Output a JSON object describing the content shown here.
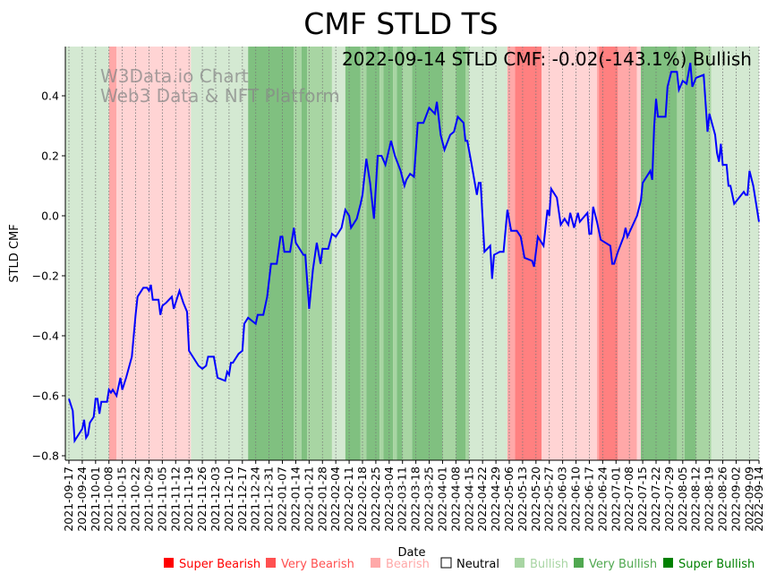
{
  "chart_data": {
    "type": "line",
    "title": "CMF STLD TS",
    "xlabel": "Date",
    "ylabel": "STLD CMF",
    "annotation": "2022-09-14 STLD CMF: -0.02(-143.1%) Bullish",
    "watermark": [
      "W3Data.io Chart",
      "Web3 Data & NFT Platform"
    ],
    "start_date": "2021-09-17",
    "xlim_days": [
      0,
      362
    ],
    "ylim": [
      -0.82,
      0.56
    ],
    "yticks": [
      -0.8,
      -0.6,
      -0.4,
      -0.2,
      0.0,
      0.2,
      0.4
    ],
    "ytick_labels": [
      "−0.8",
      "−0.6",
      "−0.4",
      "−0.2",
      "0.0",
      "0.2",
      "0.4"
    ],
    "xtick_labels": [
      "2021-09-17",
      "2021-09-24",
      "2021-10-01",
      "2021-10-08",
      "2021-10-15",
      "2021-10-22",
      "2021-10-29",
      "2021-11-05",
      "2021-11-12",
      "2021-11-19",
      "2021-11-26",
      "2021-12-03",
      "2021-12-10",
      "2021-12-17",
      "2021-12-24",
      "2021-12-31",
      "2022-01-07",
      "2022-01-14",
      "2022-01-21",
      "2022-01-28",
      "2022-02-04",
      "2022-02-11",
      "2022-02-18",
      "2022-02-25",
      "2022-03-04",
      "2022-03-11",
      "2022-03-18",
      "2022-03-25",
      "2022-04-01",
      "2022-04-08",
      "2022-04-15",
      "2022-04-22",
      "2022-04-29",
      "2022-05-06",
      "2022-05-13",
      "2022-05-20",
      "2022-05-27",
      "2022-06-03",
      "2022-06-10",
      "2022-06-17",
      "2022-06-24",
      "2022-07-01",
      "2022-07-08",
      "2022-07-15",
      "2022-07-22",
      "2022-07-29",
      "2022-08-05",
      "2022-08-12",
      "2022-08-19",
      "2022-08-26",
      "2022-09-02",
      "2022-09-09",
      "2022-09-14"
    ],
    "series": [
      {
        "name": "STLD CMF",
        "color": "#0000ff",
        "points_day_value": [
          [
            0,
            -0.61
          ],
          [
            2,
            -0.65
          ],
          [
            3,
            -0.75
          ],
          [
            7,
            -0.71
          ],
          [
            8,
            -0.68
          ],
          [
            9,
            -0.74
          ],
          [
            10,
            -0.73
          ],
          [
            11,
            -0.69
          ],
          [
            13,
            -0.67
          ],
          [
            14,
            -0.61
          ],
          [
            15,
            -0.61
          ],
          [
            16,
            -0.66
          ],
          [
            17,
            -0.62
          ],
          [
            20,
            -0.62
          ],
          [
            21,
            -0.58
          ],
          [
            22,
            -0.59
          ],
          [
            23,
            -0.58
          ],
          [
            25,
            -0.6
          ],
          [
            27,
            -0.54
          ],
          [
            28,
            -0.58
          ],
          [
            30,
            -0.54
          ],
          [
            33,
            -0.47
          ],
          [
            34,
            -0.4
          ],
          [
            35,
            -0.33
          ],
          [
            36,
            -0.27
          ],
          [
            39,
            -0.24
          ],
          [
            41,
            -0.24
          ],
          [
            42,
            -0.25
          ],
          [
            43,
            -0.23
          ],
          [
            44,
            -0.28
          ],
          [
            47,
            -0.28
          ],
          [
            48,
            -0.33
          ],
          [
            49,
            -0.3
          ],
          [
            51,
            -0.29
          ],
          [
            54,
            -0.27
          ],
          [
            55,
            -0.31
          ],
          [
            57,
            -0.27
          ],
          [
            58,
            -0.25
          ],
          [
            60,
            -0.29
          ],
          [
            62,
            -0.32
          ],
          [
            63,
            -0.45
          ],
          [
            65,
            -0.47
          ],
          [
            68,
            -0.5
          ],
          [
            70,
            -0.51
          ],
          [
            72,
            -0.5
          ],
          [
            73,
            -0.47
          ],
          [
            76,
            -0.47
          ],
          [
            78,
            -0.54
          ],
          [
            82,
            -0.55
          ],
          [
            83,
            -0.52
          ],
          [
            84,
            -0.53
          ],
          [
            85,
            -0.49
          ],
          [
            86,
            -0.49
          ],
          [
            89,
            -0.46
          ],
          [
            91,
            -0.45
          ],
          [
            92,
            -0.36
          ],
          [
            94,
            -0.34
          ],
          [
            98,
            -0.36
          ],
          [
            99,
            -0.33
          ],
          [
            102,
            -0.33
          ],
          [
            104,
            -0.27
          ],
          [
            106,
            -0.16
          ],
          [
            109,
            -0.16
          ],
          [
            111,
            -0.07
          ],
          [
            112,
            -0.07
          ],
          [
            113,
            -0.12
          ],
          [
            116,
            -0.12
          ],
          [
            118,
            -0.04
          ],
          [
            119,
            -0.09
          ],
          [
            123,
            -0.13
          ],
          [
            124,
            -0.13
          ],
          [
            126,
            -0.31
          ],
          [
            128,
            -0.18
          ],
          [
            130,
            -0.09
          ],
          [
            132,
            -0.16
          ],
          [
            133,
            -0.11
          ],
          [
            136,
            -0.11
          ],
          [
            138,
            -0.06
          ],
          [
            140,
            -0.07
          ],
          [
            143,
            -0.04
          ],
          [
            145,
            0.02
          ],
          [
            147,
            0.0
          ],
          [
            148,
            -0.04
          ],
          [
            151,
            -0.01
          ],
          [
            153,
            0.04
          ],
          [
            154,
            0.07
          ],
          [
            156,
            0.19
          ],
          [
            158,
            0.11
          ],
          [
            160,
            -0.01
          ],
          [
            162,
            0.2
          ],
          [
            164,
            0.2
          ],
          [
            166,
            0.17
          ],
          [
            169,
            0.25
          ],
          [
            171,
            0.2
          ],
          [
            174,
            0.15
          ],
          [
            176,
            0.1
          ],
          [
            177,
            0.12
          ],
          [
            179,
            0.14
          ],
          [
            181,
            0.13
          ],
          [
            183,
            0.31
          ],
          [
            186,
            0.31
          ],
          [
            189,
            0.36
          ],
          [
            192,
            0.34
          ],
          [
            193,
            0.38
          ],
          [
            195,
            0.27
          ],
          [
            197,
            0.22
          ],
          [
            200,
            0.27
          ],
          [
            202,
            0.28
          ],
          [
            204,
            0.33
          ],
          [
            207,
            0.31
          ],
          [
            208,
            0.25
          ],
          [
            209,
            0.25
          ],
          [
            211,
            0.18
          ],
          [
            214,
            0.07
          ],
          [
            215,
            0.11
          ],
          [
            216,
            0.11
          ],
          [
            218,
            -0.12
          ],
          [
            221,
            -0.1
          ],
          [
            222,
            -0.21
          ],
          [
            223,
            -0.13
          ],
          [
            226,
            -0.12
          ],
          [
            228,
            -0.12
          ],
          [
            230,
            0.02
          ],
          [
            232,
            -0.05
          ],
          [
            235,
            -0.05
          ],
          [
            237,
            -0.07
          ],
          [
            239,
            -0.14
          ],
          [
            243,
            -0.15
          ],
          [
            244,
            -0.17
          ],
          [
            246,
            -0.07
          ],
          [
            249,
            -0.1
          ],
          [
            251,
            0.02
          ],
          [
            252,
            0.0
          ],
          [
            253,
            0.09
          ],
          [
            256,
            0.06
          ],
          [
            258,
            -0.03
          ],
          [
            260,
            -0.01
          ],
          [
            262,
            -0.03
          ],
          [
            263,
            0.01
          ],
          [
            265,
            -0.04
          ],
          [
            267,
            0.01
          ],
          [
            268,
            -0.02
          ],
          [
            272,
            0.01
          ],
          [
            273,
            -0.06
          ],
          [
            274,
            -0.06
          ],
          [
            275,
            0.03
          ],
          [
            277,
            -0.02
          ],
          [
            279,
            -0.08
          ],
          [
            284,
            -0.1
          ],
          [
            285,
            -0.16
          ],
          [
            286,
            -0.16
          ],
          [
            288,
            -0.12
          ],
          [
            291,
            -0.07
          ],
          [
            292,
            -0.04
          ],
          [
            293,
            -0.07
          ],
          [
            298,
            0.0
          ],
          [
            300,
            0.05
          ],
          [
            301,
            0.11
          ],
          [
            305,
            0.15
          ],
          [
            306,
            0.12
          ],
          [
            307,
            0.3
          ],
          [
            308,
            0.39
          ],
          [
            309,
            0.33
          ],
          [
            313,
            0.33
          ],
          [
            314,
            0.43
          ],
          [
            316,
            0.48
          ],
          [
            319,
            0.48
          ],
          [
            320,
            0.42
          ],
          [
            322,
            0.45
          ],
          [
            324,
            0.44
          ],
          [
            326,
            0.51
          ],
          [
            327,
            0.43
          ],
          [
            329,
            0.46
          ],
          [
            333,
            0.47
          ],
          [
            335,
            0.28
          ],
          [
            336,
            0.34
          ],
          [
            339,
            0.27
          ],
          [
            340,
            0.21
          ],
          [
            341,
            0.18
          ],
          [
            342,
            0.24
          ],
          [
            343,
            0.17
          ],
          [
            345,
            0.17
          ],
          [
            346,
            0.1
          ],
          [
            347,
            0.1
          ],
          [
            349,
            0.04
          ],
          [
            354,
            0.08
          ],
          [
            355,
            0.07
          ],
          [
            356,
            0.07
          ],
          [
            357,
            0.15
          ],
          [
            359,
            0.1
          ],
          [
            362,
            -0.02
          ]
        ]
      }
    ],
    "regimes_day_ranges": [
      [
        0,
        21,
        "bullish"
      ],
      [
        21,
        25,
        "very_bearish"
      ],
      [
        25,
        64,
        "bearish"
      ],
      [
        64,
        94,
        "bullish"
      ],
      [
        94,
        118,
        "super_bullish"
      ],
      [
        118,
        122,
        "very_bullish"
      ],
      [
        122,
        125,
        "super_bullish"
      ],
      [
        125,
        138,
        "very_bullish"
      ],
      [
        138,
        145,
        "bullish"
      ],
      [
        145,
        153,
        "super_bullish"
      ],
      [
        153,
        156,
        "very_bullish"
      ],
      [
        156,
        163,
        "super_bullish"
      ],
      [
        163,
        165,
        "very_bullish"
      ],
      [
        165,
        170,
        "super_bullish"
      ],
      [
        170,
        172,
        "very_bullish"
      ],
      [
        172,
        175,
        "super_bullish"
      ],
      [
        175,
        180,
        "very_bullish"
      ],
      [
        180,
        196,
        "super_bullish"
      ],
      [
        196,
        203,
        "very_bullish"
      ],
      [
        203,
        208,
        "super_bullish"
      ],
      [
        208,
        210,
        "very_bullish"
      ],
      [
        210,
        230,
        "bullish"
      ],
      [
        230,
        234,
        "very_bearish"
      ],
      [
        234,
        248,
        "super_bearish"
      ],
      [
        248,
        277,
        "bearish"
      ],
      [
        277,
        278,
        "very_bearish"
      ],
      [
        278,
        288,
        "super_bearish"
      ],
      [
        288,
        298,
        "very_bearish"
      ],
      [
        298,
        300,
        "bearish"
      ],
      [
        300,
        319,
        "super_bullish"
      ],
      [
        319,
        323,
        "very_bullish"
      ],
      [
        323,
        329,
        "super_bullish"
      ],
      [
        329,
        337,
        "very_bullish"
      ],
      [
        337,
        362,
        "bullish"
      ]
    ],
    "regime_fill_colors": {
      "super_bearish": "#ff8080",
      "very_bearish": "#ffa8a8",
      "bearish": "#ffd4d4",
      "bullish": "#d4e9d2",
      "very_bullish": "#a8d5a3",
      "super_bullish": "#80c080"
    },
    "legend": {
      "placement": "bottom",
      "items": [
        {
          "label": "Super Bearish",
          "color": "#ff0000",
          "filled": true
        },
        {
          "label": "Very Bearish",
          "color": "#ff5050",
          "filled": true
        },
        {
          "label": "Bearish",
          "color": "#ffa8a8",
          "filled": true
        },
        {
          "label": "Neutral",
          "color": "#000000",
          "filled": false
        },
        {
          "label": "Bullish",
          "color": "#a8d5a3",
          "filled": true
        },
        {
          "label": "Very Bullish",
          "color": "#50a850",
          "filled": true
        },
        {
          "label": "Super Bullish",
          "color": "#008000",
          "filled": true
        }
      ]
    },
    "grid": "vertical dotted"
  }
}
